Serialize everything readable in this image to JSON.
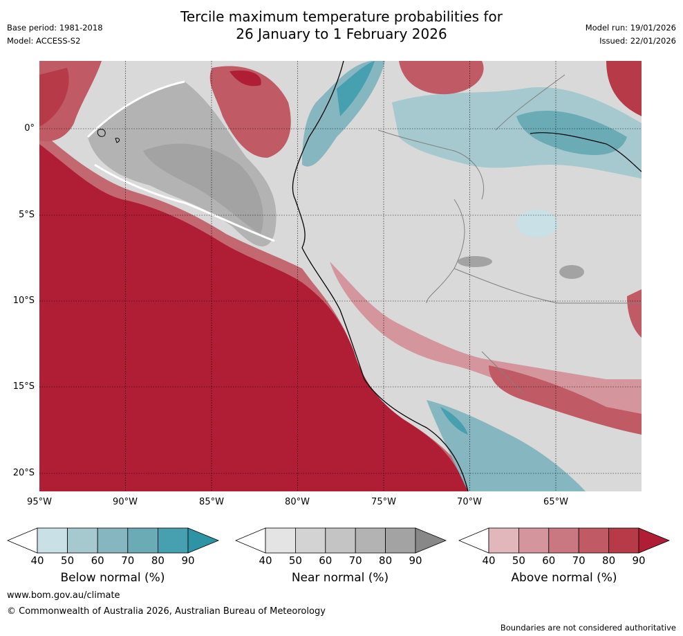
{
  "title": {
    "line1": "Tercile maximum temperature probabilities for",
    "line2": "26 January to 1 February 2026"
  },
  "meta": {
    "base_period": "Base period: 1981-2018",
    "model": "Model: ACCESS-S2",
    "model_run": "Model run: 19/01/2026",
    "issued": "Issued: 22/01/2026"
  },
  "axes": {
    "lon_labels": [
      "95°W",
      "90°W",
      "85°W",
      "80°W",
      "75°W",
      "70°W",
      "65°W"
    ],
    "lat_labels": [
      "0°",
      "5°S",
      "10°S",
      "15°S",
      "20°S"
    ]
  },
  "colorbars": [
    {
      "name": "below",
      "label": "Below normal (%)",
      "ticks": [
        "40",
        "50",
        "60",
        "70",
        "80",
        "90"
      ],
      "colors": [
        "#ffffff",
        "#c9e0e6",
        "#a6c8cf",
        "#86b7c1",
        "#6aabb6",
        "#47a0b0",
        "#2f93a6"
      ]
    },
    {
      "name": "near",
      "label": "Near normal (%)",
      "ticks": [
        "40",
        "50",
        "60",
        "70",
        "80",
        "90"
      ],
      "colors": [
        "#ffffff",
        "#e4e4e4",
        "#d3d3d3",
        "#c4c4c4",
        "#b3b3b3",
        "#a3a3a3",
        "#888888"
      ]
    },
    {
      "name": "above",
      "label": "Above normal (%)",
      "ticks": [
        "40",
        "50",
        "60",
        "70",
        "80",
        "90"
      ],
      "colors": [
        "#ffffff",
        "#e1b7bb",
        "#d4959c",
        "#c97881",
        "#c05a65",
        "#b73a48",
        "#b01e36"
      ]
    }
  ],
  "footer": {
    "website": "www.bom.gov.au/climate",
    "copyright": "© Commonwealth of Australia 2026, Australian Bureau of Meteorology",
    "disclaimer": "Boundaries are not considered authoritative"
  }
}
